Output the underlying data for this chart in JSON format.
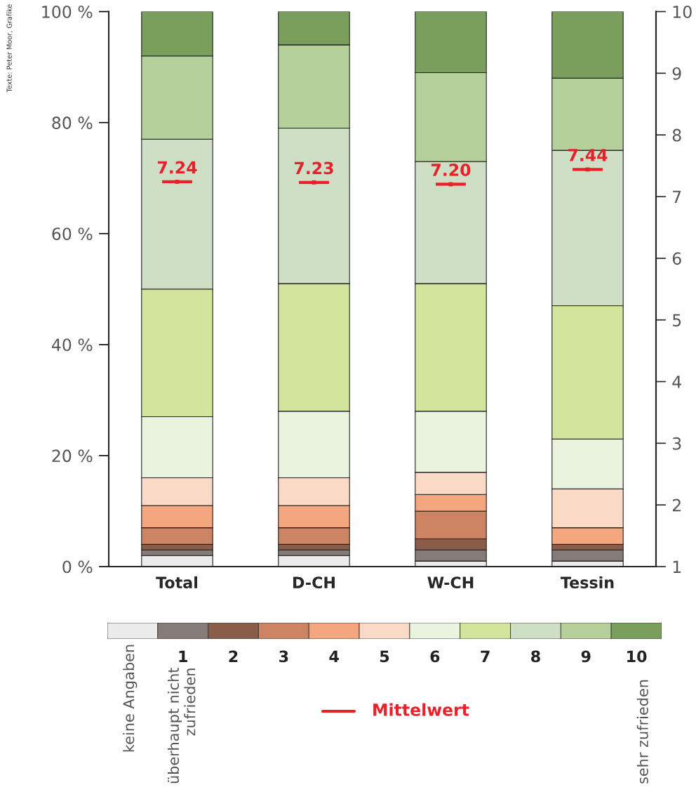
{
  "chart_data": {
    "type": "bar",
    "stacked": true,
    "legend": "bottom",
    "categories": [
      "Total",
      "D-CH",
      "W-CH",
      "Tessin"
    ],
    "series": [
      {
        "name": "keine Angaben",
        "color": "#ebebeb",
        "values": [
          2,
          2,
          1,
          1
        ]
      },
      {
        "name": "1",
        "color": "#857b78",
        "values": [
          1,
          1,
          2,
          2
        ]
      },
      {
        "name": "2",
        "color": "#8a5c4a",
        "values": [
          1,
          1,
          2,
          1
        ]
      },
      {
        "name": "3",
        "color": "#cc8463",
        "values": [
          3,
          3,
          5,
          0
        ]
      },
      {
        "name": "4",
        "color": "#f4a77e",
        "values": [
          4,
          4,
          3,
          3
        ]
      },
      {
        "name": "5",
        "color": "#fbd9c7",
        "values": [
          5,
          5,
          4,
          7
        ]
      },
      {
        "name": "6",
        "color": "#eaf3dd",
        "values": [
          11,
          12,
          11,
          9
        ]
      },
      {
        "name": "7",
        "color": "#d3e49d",
        "values": [
          23,
          23,
          23,
          24
        ]
      },
      {
        "name": "8",
        "color": "#cedfc6",
        "values": [
          27,
          28,
          22,
          28
        ]
      },
      {
        "name": "9",
        "color": "#b5d09b",
        "values": [
          15,
          15,
          16,
          13
        ]
      },
      {
        "name": "10",
        "color": "#7a9f5d",
        "values": [
          8,
          6,
          11,
          12
        ]
      },
      {
        "name": "Mittelwert",
        "type": "scatter",
        "axis": "y2",
        "color": "#e8202a",
        "values": [
          7.24,
          7.23,
          7.2,
          7.44
        ],
        "value_labels": [
          "7.24",
          "7.23",
          "7.20",
          "7.44"
        ]
      }
    ],
    "ylim": [
      0,
      100
    ],
    "yticks": [
      {
        "value": 0,
        "label": "0 %"
      },
      {
        "value": 20,
        "label": "20 %"
      },
      {
        "value": 40,
        "label": "40 %"
      },
      {
        "value": 60,
        "label": "60 %"
      },
      {
        "value": 80,
        "label": "80 %"
      },
      {
        "value": 100,
        "label": "100 %"
      }
    ],
    "y2lim": [
      1,
      10
    ],
    "y2ticks": [
      1,
      2,
      3,
      4,
      5,
      6,
      7,
      8,
      9,
      10
    ],
    "annotations": [
      "Texte: Peter Moor, Grafike",
      "überhaupt nicht\nzufrieden",
      "sehr zufrieden"
    ]
  }
}
